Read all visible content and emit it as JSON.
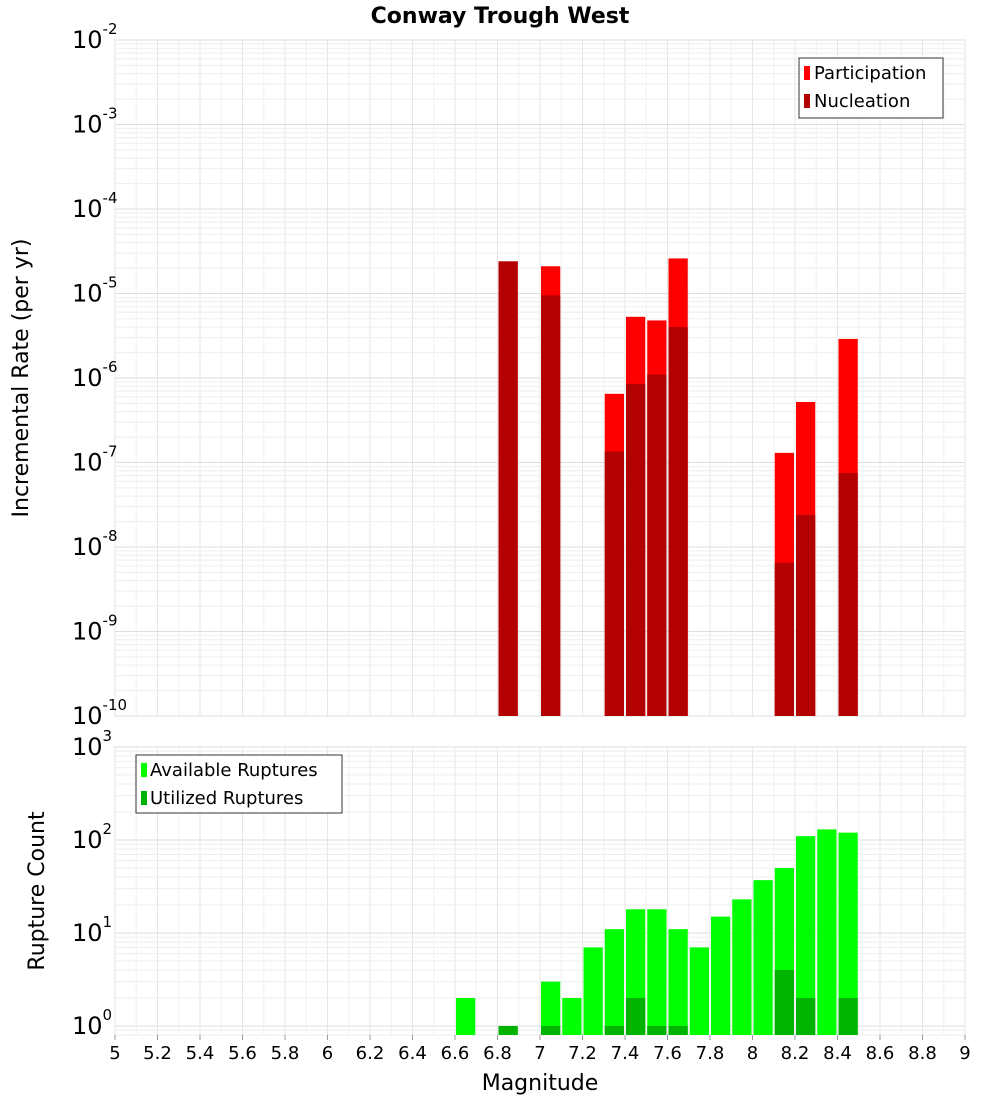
{
  "chart_data": [
    {
      "type": "bar",
      "title": "Conway Trough West",
      "ylabel": "Incremental Rate (per yr)",
      "xlabel": "",
      "yscale": "log",
      "ylim": [
        1e-10,
        0.01
      ],
      "xlim": [
        5,
        9
      ],
      "grid": true,
      "legend_position": "top-right",
      "colors": {
        "Participation": "#ff0000",
        "Nucleation": "#b30000"
      },
      "series": [
        {
          "name": "Participation",
          "x": [
            6.85,
            7.05,
            7.35,
            7.45,
            7.55,
            7.65,
            8.15,
            8.25,
            8.45
          ],
          "values": [
            2.4e-05,
            2.1e-05,
            6.5e-07,
            5.3e-06,
            4.8e-06,
            2.6e-05,
            1.3e-07,
            5.2e-07,
            2.9e-06
          ]
        },
        {
          "name": "Nucleation",
          "x": [
            6.85,
            7.05,
            7.35,
            7.45,
            7.55,
            7.65,
            8.15,
            8.25,
            8.45
          ],
          "values": [
            2.4e-05,
            9.5e-06,
            1.35e-07,
            8.5e-07,
            1.1e-06,
            4e-06,
            6.5e-09,
            2.4e-08,
            7.5e-08
          ]
        }
      ]
    },
    {
      "type": "bar",
      "ylabel": "Rupture Count",
      "xlabel": "Magnitude",
      "yscale": "log",
      "ylim": [
        0.8,
        1000
      ],
      "xlim": [
        5,
        9
      ],
      "grid": true,
      "legend_position": "top-left",
      "colors": {
        "Available Ruptures": "#00ff00",
        "Utilized Ruptures": "#00b300"
      },
      "series": [
        {
          "name": "Available Ruptures",
          "x": [
            6.65,
            6.85,
            7.05,
            7.15,
            7.25,
            7.35,
            7.45,
            7.55,
            7.65,
            7.75,
            7.85,
            7.95,
            8.05,
            8.15,
            8.25,
            8.35,
            8.45
          ],
          "values": [
            2,
            1,
            3,
            2,
            7,
            11,
            18,
            18,
            11,
            7,
            15,
            23,
            37,
            50,
            110,
            130,
            120
          ]
        },
        {
          "name": "Utilized Ruptures",
          "x": [
            6.85,
            7.05,
            7.35,
            7.45,
            7.55,
            7.65,
            8.15,
            8.25,
            8.45
          ],
          "values": [
            1,
            1,
            1,
            2,
            1,
            1,
            4,
            2,
            2
          ]
        }
      ]
    }
  ],
  "x_ticks": [
    "5",
    "5.2",
    "5.4",
    "5.6",
    "5.8",
    "6",
    "6.2",
    "6.4",
    "6.6",
    "6.8",
    "7",
    "7.2",
    "7.4",
    "7.6",
    "7.8",
    "8",
    "8.2",
    "8.4",
    "8.6",
    "8.8",
    "9"
  ],
  "top_y_ticks": [
    {
      "base": "10",
      "exp": "-10"
    },
    {
      "base": "10",
      "exp": "-9"
    },
    {
      "base": "10",
      "exp": "-8"
    },
    {
      "base": "10",
      "exp": "-7"
    },
    {
      "base": "10",
      "exp": "-6"
    },
    {
      "base": "10",
      "exp": "-5"
    },
    {
      "base": "10",
      "exp": "-4"
    },
    {
      "base": "10",
      "exp": "-3"
    },
    {
      "base": "10",
      "exp": "-2"
    }
  ],
  "bottom_y_ticks": [
    {
      "base": "10",
      "exp": "0"
    },
    {
      "base": "10",
      "exp": "1"
    },
    {
      "base": "10",
      "exp": "2"
    },
    {
      "base": "10",
      "exp": "3"
    }
  ]
}
